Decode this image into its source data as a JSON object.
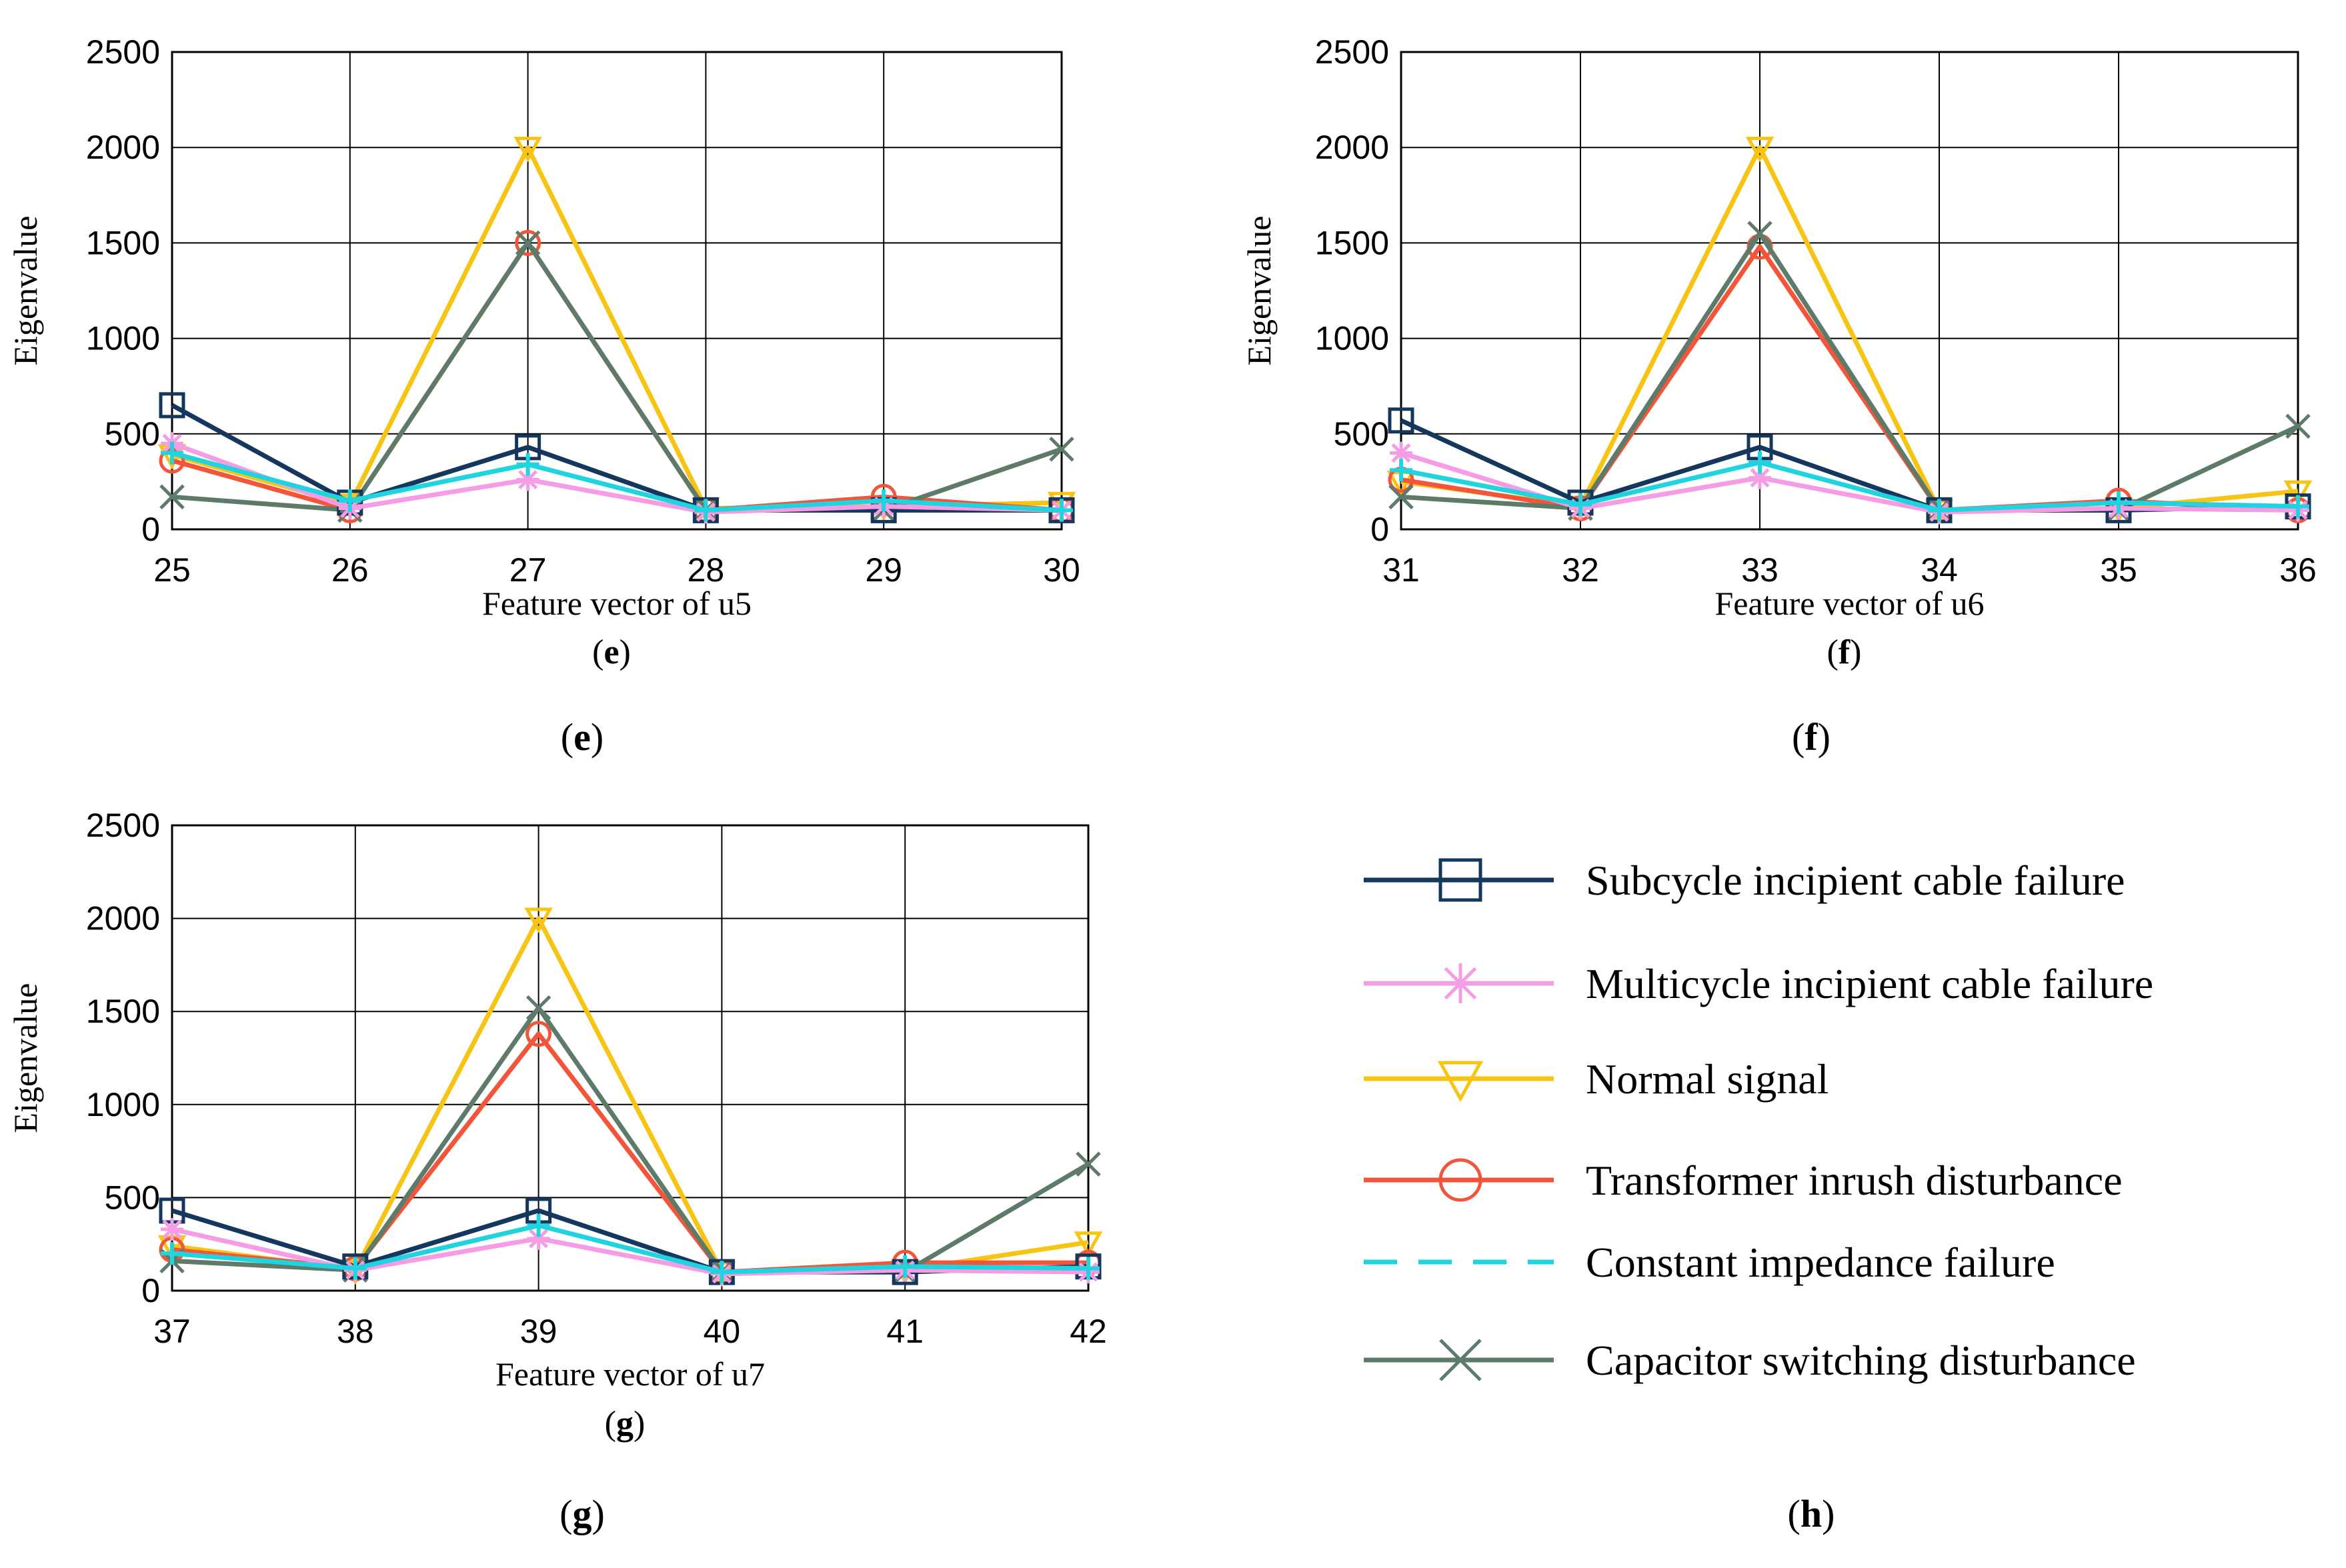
{
  "colors": {
    "subcycle": "#15375e",
    "multicycle": "#f49ce4",
    "normal": "#f7c413",
    "transformer": "#f2553a",
    "impedance": "#1fd3df",
    "capacitor": "#5d7b68"
  },
  "legend": {
    "items": [
      {
        "key": "subcycle",
        "label": "Subcycle incipient cable failure",
        "marker": "square"
      },
      {
        "key": "multicycle",
        "label": "Multicycle incipient cable failure",
        "marker": "asterisk"
      },
      {
        "key": "normal",
        "label": "Normal signal",
        "marker": "triangle-down"
      },
      {
        "key": "transformer",
        "label": "Transformer inrush disturbance",
        "marker": "circle"
      },
      {
        "key": "impedance",
        "label": "Constant impedance failure",
        "marker": "dashed"
      },
      {
        "key": "capacitor",
        "label": "Capacitor switching disturbance",
        "marker": "x"
      }
    ],
    "caption_prefix": "(",
    "caption_letter": "h",
    "caption_suffix": ")"
  },
  "chart_data": [
    {
      "type": "line",
      "id": "e",
      "xlabel": "Feature vector of u5",
      "ylabel": "Eigenvalue",
      "inner_caption_letter": "e",
      "outer_caption_letter": "e",
      "x": [
        25,
        26,
        27,
        28,
        29,
        30
      ],
      "xticks": [
        "25",
        "26",
        "27",
        "28",
        "29",
        "30"
      ],
      "yticks": [
        "0",
        "500",
        "1000",
        "1500",
        "2000",
        "2500"
      ],
      "ylim": [
        0,
        2500
      ],
      "series": [
        {
          "key": "subcycle",
          "name": "Subcycle incipient cable failure",
          "values": [
            650,
            140,
            430,
            100,
            100,
            100
          ]
        },
        {
          "key": "multicycle",
          "name": "Multicycle incipient cable failure",
          "values": [
            450,
            110,
            260,
            90,
            120,
            100
          ]
        },
        {
          "key": "normal",
          "name": "Normal signal",
          "values": [
            390,
            130,
            2000,
            110,
            120,
            140
          ]
        },
        {
          "key": "transformer",
          "name": "Transformer inrush disturbance",
          "values": [
            360,
            100,
            1500,
            100,
            170,
            100
          ]
        },
        {
          "key": "impedance",
          "name": "Constant impedance failure",
          "values": [
            400,
            150,
            340,
            100,
            150,
            100
          ]
        },
        {
          "key": "capacitor",
          "name": "Capacitor switching disturbance",
          "values": [
            170,
            100,
            1500,
            100,
            100,
            420
          ]
        }
      ]
    },
    {
      "type": "line",
      "id": "f",
      "xlabel": "Feature vector of u6",
      "ylabel": "Eigenvalue",
      "inner_caption_letter": "f",
      "outer_caption_letter": "f",
      "x": [
        31,
        32,
        33,
        34,
        35,
        36
      ],
      "xticks": [
        "31",
        "32",
        "33",
        "34",
        "35",
        "36"
      ],
      "yticks": [
        "0",
        "500",
        "1000",
        "1500",
        "2000",
        "2500"
      ],
      "ylim": [
        0,
        2500
      ],
      "series": [
        {
          "key": "subcycle",
          "name": "Subcycle incipient cable failure",
          "values": [
            570,
            140,
            430,
            100,
            100,
            120
          ]
        },
        {
          "key": "multicycle",
          "name": "Multicycle incipient cable failure",
          "values": [
            400,
            110,
            270,
            90,
            110,
            100
          ]
        },
        {
          "key": "normal",
          "name": "Normal signal",
          "values": [
            250,
            120,
            2000,
            100,
            110,
            200
          ]
        },
        {
          "key": "transformer",
          "name": "Transformer inrush disturbance",
          "values": [
            260,
            110,
            1480,
            100,
            150,
            100
          ]
        },
        {
          "key": "impedance",
          "name": "Constant impedance failure",
          "values": [
            310,
            130,
            350,
            100,
            140,
            120
          ]
        },
        {
          "key": "capacitor",
          "name": "Capacitor switching disturbance",
          "values": [
            170,
            110,
            1550,
            100,
            100,
            540
          ]
        }
      ]
    },
    {
      "type": "line",
      "id": "g",
      "xlabel": "Feature vector of u7",
      "ylabel": "Eigenvalue",
      "inner_caption_letter": "g",
      "outer_caption_letter": "g",
      "x": [
        37,
        38,
        39,
        40,
        41,
        42
      ],
      "xticks": [
        "37",
        "38",
        "39",
        "40",
        "41",
        "42"
      ],
      "yticks": [
        "0",
        "500",
        "1000",
        "1500",
        "2000",
        "2500"
      ],
      "ylim": [
        0,
        2500
      ],
      "series": [
        {
          "key": "subcycle",
          "name": "Subcycle incipient cable failure",
          "values": [
            430,
            130,
            430,
            100,
            100,
            130
          ]
        },
        {
          "key": "multicycle",
          "name": "Multicycle incipient cable failure",
          "values": [
            330,
            110,
            280,
            90,
            110,
            100
          ]
        },
        {
          "key": "normal",
          "name": "Normal signal",
          "values": [
            240,
            110,
            2000,
            100,
            110,
            260
          ]
        },
        {
          "key": "transformer",
          "name": "Transformer inrush disturbance",
          "values": [
            220,
            120,
            1380,
            100,
            150,
            150
          ]
        },
        {
          "key": "impedance",
          "name": "Constant impedance failure",
          "values": [
            200,
            120,
            350,
            100,
            130,
            120
          ]
        },
        {
          "key": "capacitor",
          "name": "Capacitor switching disturbance",
          "values": [
            160,
            110,
            1520,
            100,
            100,
            680
          ]
        }
      ]
    }
  ]
}
